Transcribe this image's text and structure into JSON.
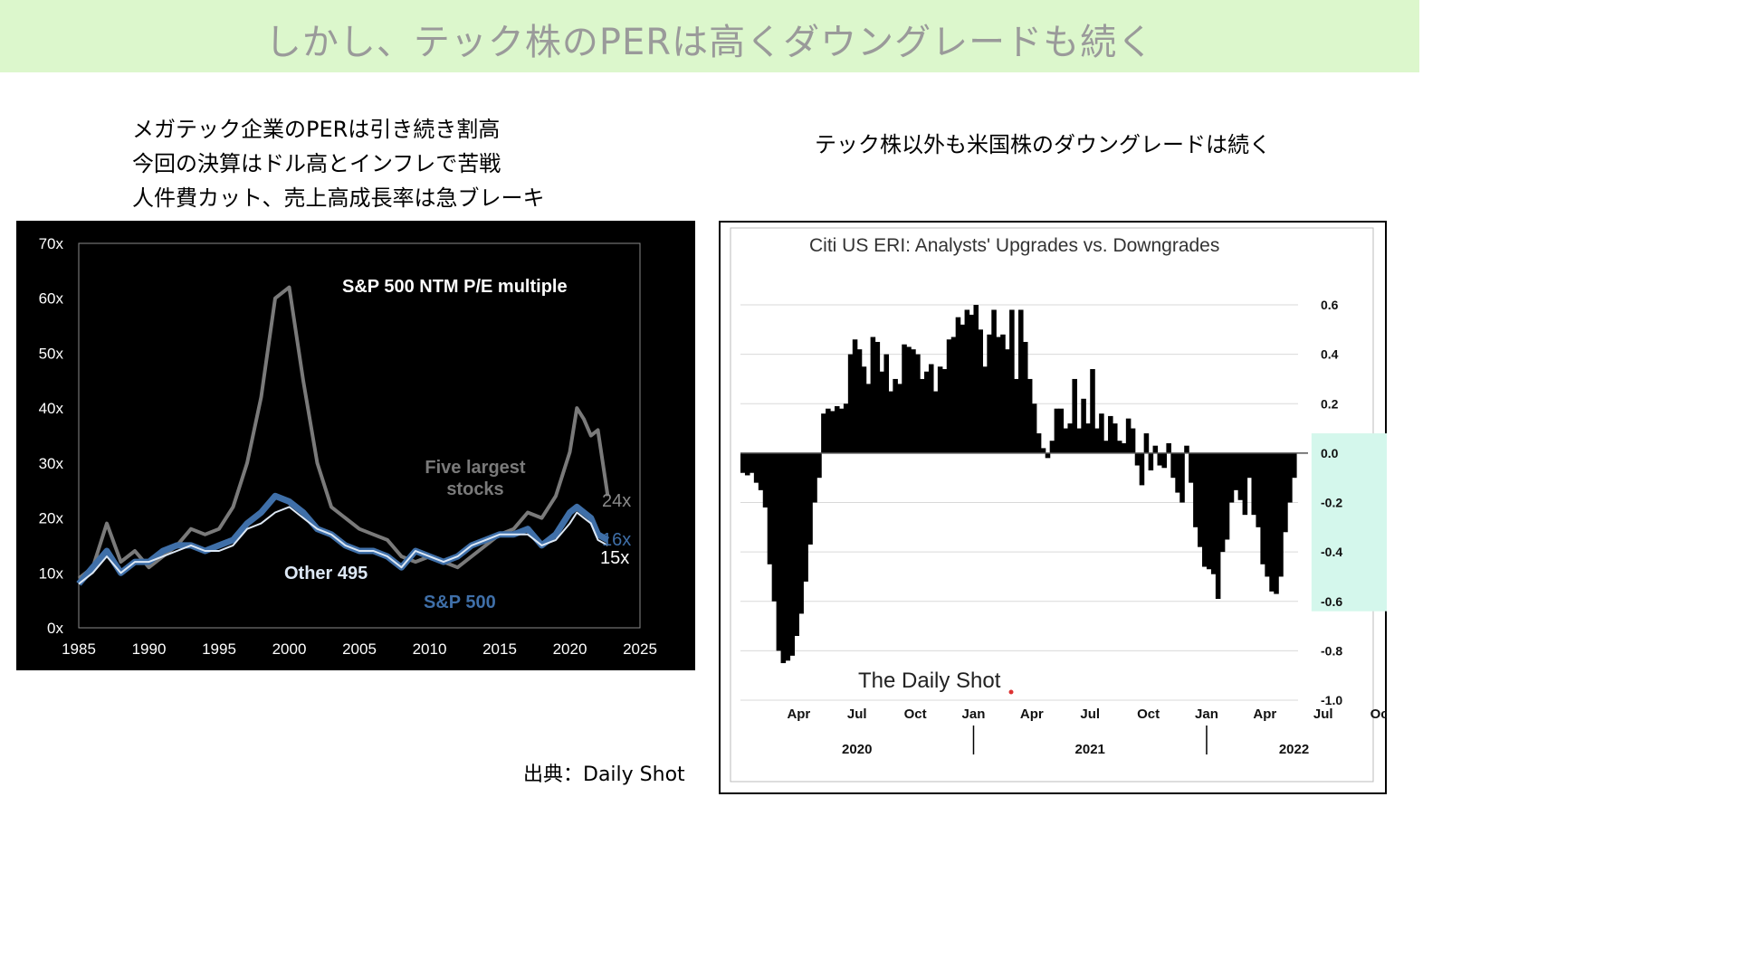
{
  "slide_title": "しかし、テック株のPERは高くダウングレードも続く",
  "left_notes": [
    "メガテック企業のPERは引き続き割高",
    "今回の決算はドル高とインフレで苦戦",
    "人件費カット、売上高成長率は急ブレーキ"
  ],
  "right_note": "テック株以外も米国株のダウングレードは続く",
  "source": "出典：Daily Shot",
  "colors": {
    "banner": "#dcf7cc",
    "title": "#9a9a9a",
    "five_largest": "#7a7a7a",
    "sp500": "#3f6fa8",
    "other495": "#dde8f5",
    "highlight": "#d4f7ec"
  },
  "chart_data": [
    {
      "type": "line",
      "title": "S&P 500 NTM P/E multiple",
      "ylim": [
        0,
        70
      ],
      "xlim": [
        1985,
        2025
      ],
      "x_ticks": [
        "1985",
        "1990",
        "1995",
        "2000",
        "2005",
        "2010",
        "2015",
        "2020",
        "2025"
      ],
      "y_ticks": [
        "0x",
        "10x",
        "20x",
        "30x",
        "40x",
        "50x",
        "60x",
        "70x"
      ],
      "annotations": [
        "Five largest",
        "stocks",
        "Other 495",
        "S&P 500",
        "24x",
        "16x",
        "15x"
      ],
      "series": [
        {
          "name": "Five largest stocks",
          "x": [
            1985,
            1986,
            1987,
            1988,
            1989,
            1990,
            1991,
            1992,
            1993,
            1994,
            1995,
            1996,
            1997,
            1998,
            1999,
            2000,
            2001,
            2002,
            2003,
            2004,
            2005,
            2006,
            2007,
            2008,
            2009,
            2010,
            2011,
            2012,
            2013,
            2014,
            2015,
            2016,
            2017,
            2018,
            2019,
            2020,
            2020.5,
            2021,
            2021.5,
            2022,
            2022.7
          ],
          "values": [
            9,
            11,
            19,
            12,
            14,
            11,
            13,
            15,
            18,
            17,
            18,
            22,
            30,
            42,
            60,
            62,
            45,
            30,
            22,
            20,
            18,
            17,
            16,
            13,
            12,
            13,
            12,
            11,
            13,
            15,
            17,
            18,
            21,
            20,
            24,
            32,
            40,
            38,
            35,
            36,
            24
          ]
        },
        {
          "name": "S&P 500",
          "x": [
            1985,
            1986,
            1987,
            1988,
            1989,
            1990,
            1991,
            1992,
            1993,
            1994,
            1995,
            1996,
            1997,
            1998,
            1999,
            2000,
            2001,
            2002,
            2003,
            2004,
            2005,
            2006,
            2007,
            2008,
            2009,
            2010,
            2011,
            2012,
            2013,
            2014,
            2015,
            2016,
            2017,
            2018,
            2019,
            2020,
            2020.5,
            2021,
            2021.5,
            2022,
            2022.7
          ],
          "values": [
            8,
            11,
            14,
            10,
            12,
            12,
            14,
            15,
            15,
            14,
            15,
            16,
            19,
            21,
            24,
            23,
            21,
            18,
            17,
            15,
            14,
            14,
            13,
            11,
            14,
            13,
            12,
            13,
            15,
            16,
            17,
            17,
            18,
            15,
            17,
            21,
            22,
            21,
            20,
            17,
            16
          ]
        },
        {
          "name": "Other 495",
          "x": [
            1985,
            1986,
            1987,
            1988,
            1989,
            1990,
            1991,
            1992,
            1993,
            1994,
            1995,
            1996,
            1997,
            1998,
            1999,
            2000,
            2001,
            2002,
            2003,
            2004,
            2005,
            2006,
            2007,
            2008,
            2009,
            2010,
            2011,
            2012,
            2013,
            2014,
            2015,
            2016,
            2017,
            2018,
            2019,
            2020,
            2020.5,
            2021,
            2021.5,
            2022,
            2022.7
          ],
          "values": [
            8,
            10,
            13,
            10,
            12,
            12,
            13,
            14,
            15,
            14,
            14,
            15,
            18,
            19,
            21,
            22,
            20,
            18,
            17,
            15,
            14,
            14,
            13,
            11,
            14,
            13,
            12,
            13,
            15,
            16,
            17,
            17,
            17,
            15,
            16,
            19,
            21,
            20,
            19,
            16,
            15
          ]
        }
      ]
    },
    {
      "type": "bar",
      "title": "Citi US ERI: Analysts' Upgrades vs. Downgrades",
      "ylim": [
        -1.0,
        0.6
      ],
      "y_ticks": [
        "0.6",
        "0.4",
        "0.2",
        "0.0",
        "-0.2",
        "-0.4",
        "-0.6",
        "-0.8",
        "-1.0"
      ],
      "month_ticks": [
        "Apr",
        "Jul",
        "Oct",
        "Jan",
        "Apr",
        "Jul",
        "Oct",
        "Jan",
        "Apr",
        "Jul",
        "Oct"
      ],
      "year_labels": [
        "2020",
        "2021",
        "2022"
      ],
      "watermark": "The Daily Shot",
      "x_start": "2020-01",
      "x_step": "week",
      "values": [
        -0.08,
        -0.09,
        -0.08,
        -0.12,
        -0.15,
        -0.22,
        -0.45,
        -0.6,
        -0.8,
        -0.85,
        -0.84,
        -0.82,
        -0.74,
        -0.65,
        -0.52,
        -0.37,
        -0.2,
        -0.1,
        0.16,
        0.18,
        0.17,
        0.19,
        0.18,
        0.2,
        0.4,
        0.46,
        0.42,
        0.35,
        0.28,
        0.47,
        0.45,
        0.33,
        0.4,
        0.25,
        0.3,
        0.28,
        0.44,
        0.43,
        0.42,
        0.4,
        0.3,
        0.33,
        0.36,
        0.25,
        0.35,
        0.34,
        0.46,
        0.47,
        0.55,
        0.52,
        0.58,
        0.56,
        0.6,
        0.5,
        0.35,
        0.48,
        0.58,
        0.47,
        0.48,
        0.42,
        0.58,
        0.3,
        0.58,
        0.45,
        0.3,
        0.2,
        0.08,
        0.02,
        -0.02,
        0.05,
        0.18,
        0.18,
        0.1,
        0.12,
        0.3,
        0.1,
        0.22,
        0.12,
        0.34,
        0.1,
        0.16,
        0.05,
        0.15,
        0.12,
        0.05,
        0.04,
        0.14,
        0.1,
        -0.05,
        -0.13,
        0.08,
        -0.07,
        0.03,
        -0.05,
        -0.06,
        0.04,
        -0.1,
        -0.16,
        -0.2,
        0.03,
        -0.12,
        -0.3,
        -0.38,
        -0.46,
        -0.47,
        -0.49,
        -0.59,
        -0.4,
        -0.35,
        -0.2,
        -0.15,
        -0.19,
        -0.25,
        -0.1,
        -0.25,
        -0.3,
        -0.45,
        -0.5,
        -0.56,
        -0.57,
        -0.5,
        -0.32,
        -0.2,
        -0.1
      ],
      "highlight_range": "2022-06 to 2022-11"
    }
  ]
}
